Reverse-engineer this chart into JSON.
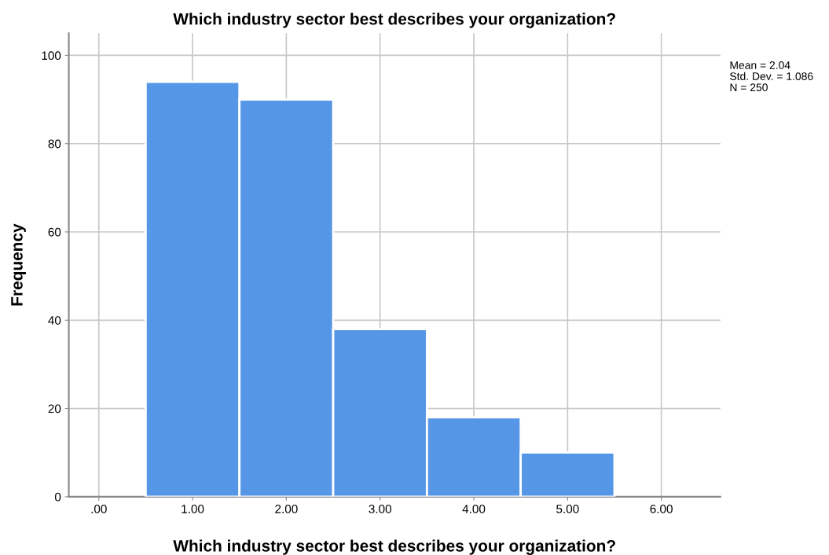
{
  "chart_data": {
    "type": "histogram",
    "title": "Which industry sector best describes your organization?",
    "xlabel": "Which industry sector best describes your organization?",
    "ylabel": "Frequency",
    "bins": [
      0.5,
      1.5,
      2.5,
      3.5,
      4.5,
      5.5
    ],
    "values": [
      94,
      90,
      38,
      18,
      10
    ],
    "color": "#5596e6",
    "xlim": [
      -0.32,
      6.63
    ],
    "xticks": [
      {
        "value": 0,
        "label": ".00"
      },
      {
        "value": 1,
        "label": "1.00"
      },
      {
        "value": 2,
        "label": "2.00"
      },
      {
        "value": 3,
        "label": "3.00"
      },
      {
        "value": 4,
        "label": "4.00"
      },
      {
        "value": 5,
        "label": "5.00"
      },
      {
        "value": 6,
        "label": "6.00"
      }
    ],
    "ylim": [
      0,
      105
    ],
    "yticks": [
      0,
      20,
      40,
      60,
      80,
      100
    ],
    "grid": true,
    "annotations": [
      "Mean = 2.04",
      "Std. Dev. = 1.086",
      "N = 250"
    ]
  }
}
